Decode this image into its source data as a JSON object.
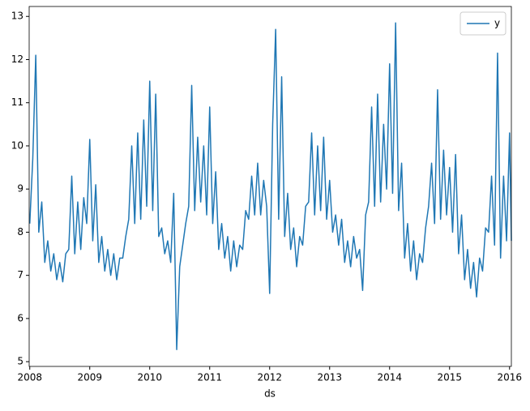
{
  "chart_data": {
    "type": "line",
    "x_label": "ds",
    "x": [
      2008.0,
      2008.05,
      2008.1,
      2008.15,
      2008.2,
      2008.25,
      2008.3,
      2008.35,
      2008.4,
      2008.45,
      2008.5,
      2008.55,
      2008.6,
      2008.65,
      2008.7,
      2008.75,
      2008.8,
      2008.85,
      2008.9,
      2008.95,
      2009.0,
      2009.05,
      2009.1,
      2009.15,
      2009.2,
      2009.25,
      2009.3,
      2009.35,
      2009.4,
      2009.45,
      2009.5,
      2009.55,
      2009.6,
      2009.65,
      2009.7,
      2009.75,
      2009.8,
      2009.85,
      2009.9,
      2009.95,
      2010.0,
      2010.05,
      2010.1,
      2010.15,
      2010.2,
      2010.25,
      2010.3,
      2010.35,
      2010.4,
      2010.45,
      2010.5,
      2010.55,
      2010.6,
      2010.65,
      2010.7,
      2010.75,
      2010.8,
      2010.85,
      2010.9,
      2010.95,
      2011.0,
      2011.05,
      2011.1,
      2011.15,
      2011.2,
      2011.25,
      2011.3,
      2011.35,
      2011.4,
      2011.45,
      2011.5,
      2011.55,
      2011.6,
      2011.65,
      2011.7,
      2011.75,
      2011.8,
      2011.85,
      2011.9,
      2011.95,
      2012.0,
      2012.05,
      2012.1,
      2012.15,
      2012.2,
      2012.25,
      2012.3,
      2012.35,
      2012.4,
      2012.45,
      2012.5,
      2012.55,
      2012.6,
      2012.65,
      2012.7,
      2012.75,
      2012.8,
      2012.85,
      2012.9,
      2012.95,
      2013.0,
      2013.05,
      2013.1,
      2013.15,
      2013.2,
      2013.25,
      2013.3,
      2013.35,
      2013.4,
      2013.45,
      2013.5,
      2013.55,
      2013.6,
      2013.65,
      2013.7,
      2013.75,
      2013.8,
      2013.85,
      2013.9,
      2013.95,
      2014.0,
      2014.05,
      2014.1,
      2014.15,
      2014.2,
      2014.25,
      2014.3,
      2014.35,
      2014.4,
      2014.45,
      2014.5,
      2014.55,
      2014.6,
      2014.65,
      2014.7,
      2014.75,
      2014.8,
      2014.85,
      2014.9,
      2014.95,
      2015.0,
      2015.05,
      2015.1,
      2015.15,
      2015.2,
      2015.25,
      2015.3,
      2015.35,
      2015.4,
      2015.45,
      2015.5,
      2015.55,
      2015.6,
      2015.65,
      2015.7,
      2015.75,
      2015.8,
      2015.85,
      2015.9,
      2015.95,
      2016.0,
      2016.03
    ],
    "series": [
      {
        "name": "y",
        "color": "#1f77b4",
        "values": [
          8.2,
          9.7,
          12.1,
          8.0,
          8.7,
          7.3,
          7.8,
          7.1,
          7.5,
          6.9,
          7.3,
          6.85,
          7.5,
          7.6,
          9.3,
          7.5,
          8.7,
          7.6,
          8.8,
          8.2,
          10.15,
          7.8,
          9.1,
          7.3,
          7.9,
          7.1,
          7.6,
          7.0,
          7.5,
          6.9,
          7.4,
          7.4,
          7.9,
          8.3,
          10.0,
          8.2,
          10.3,
          8.3,
          10.6,
          8.6,
          11.5,
          8.5,
          11.2,
          7.9,
          8.1,
          7.5,
          7.8,
          7.3,
          8.9,
          5.28,
          7.2,
          7.7,
          8.2,
          8.6,
          11.4,
          8.5,
          10.2,
          8.7,
          10.0,
          8.4,
          10.9,
          8.2,
          9.4,
          7.6,
          8.2,
          7.4,
          7.9,
          7.1,
          7.8,
          7.2,
          7.7,
          7.6,
          8.5,
          8.3,
          9.3,
          8.4,
          9.6,
          8.4,
          9.2,
          8.6,
          6.58,
          10.5,
          12.7,
          8.3,
          11.6,
          7.9,
          8.9,
          7.6,
          8.1,
          7.2,
          7.9,
          7.7,
          8.6,
          8.7,
          10.3,
          8.4,
          10.0,
          8.5,
          10.2,
          8.3,
          9.2,
          8.0,
          8.4,
          7.7,
          8.3,
          7.3,
          7.8,
          7.2,
          7.9,
          7.4,
          7.6,
          6.65,
          8.4,
          8.7,
          10.9,
          8.6,
          11.2,
          8.7,
          10.5,
          9.0,
          11.9,
          8.9,
          12.85,
          8.5,
          9.6,
          7.4,
          8.2,
          7.1,
          7.8,
          6.9,
          7.5,
          7.3,
          8.1,
          8.6,
          9.6,
          8.2,
          11.3,
          8.3,
          9.9,
          8.4,
          9.5,
          8.0,
          9.8,
          7.5,
          8.4,
          6.9,
          7.6,
          6.7,
          7.3,
          6.5,
          7.4,
          7.1,
          8.1,
          8.0,
          9.3,
          7.7,
          12.15,
          7.4,
          9.3,
          7.8,
          10.3,
          7.8
        ]
      }
    ],
    "xlim": [
      2007.99,
      2016.03
    ],
    "xticks": [
      2008,
      2009,
      2010,
      2011,
      2012,
      2013,
      2014,
      2015,
      2016
    ],
    "ylim": [
      4.89,
      13.23
    ],
    "yticks": [
      5,
      6,
      7,
      8,
      9,
      10,
      11,
      12,
      13
    ],
    "legend": "upper right"
  }
}
